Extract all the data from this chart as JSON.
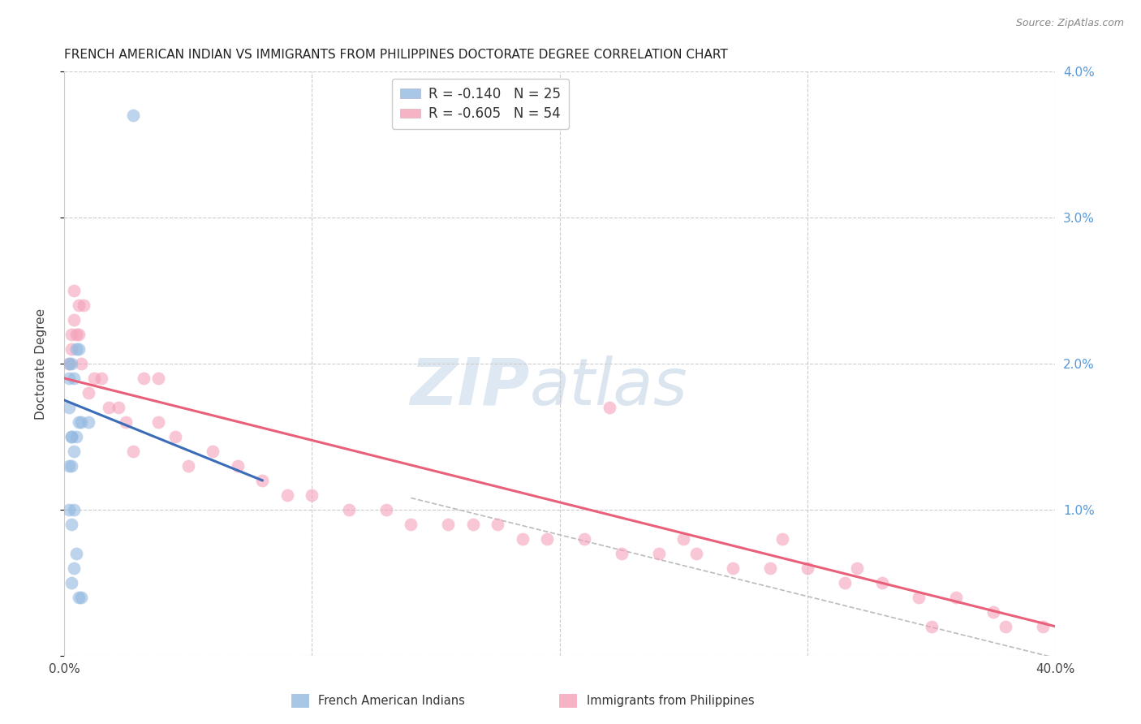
{
  "title": "FRENCH AMERICAN INDIAN VS IMMIGRANTS FROM PHILIPPINES DOCTORATE DEGREE CORRELATION CHART",
  "source": "Source: ZipAtlas.com",
  "ylabel": "Doctorate Degree",
  "xlim": [
    0,
    0.4
  ],
  "ylim": [
    0,
    0.04
  ],
  "yticks": [
    0.0,
    0.01,
    0.02,
    0.03,
    0.04
  ],
  "ytick_labels": [
    "",
    "1.0%",
    "2.0%",
    "3.0%",
    "4.0%"
  ],
  "legend_blue_r": "-0.140",
  "legend_blue_n": "25",
  "legend_pink_r": "-0.605",
  "legend_pink_n": "54",
  "legend_blue_label": "French American Indians",
  "legend_pink_label": "Immigrants from Philippines",
  "blue_color": "#92B8E0",
  "pink_color": "#F4A0B8",
  "blue_line_color": "#3B6CB7",
  "pink_line_color": "#E8607A",
  "dashed_line_color": "#BBBBBB",
  "blue_scatter_x": [
    0.028,
    0.005,
    0.003,
    0.004,
    0.006,
    0.002,
    0.002,
    0.003,
    0.006,
    0.01,
    0.002,
    0.003,
    0.003,
    0.005,
    0.007,
    0.004,
    0.002,
    0.002,
    0.004,
    0.003,
    0.005,
    0.004,
    0.003,
    0.006,
    0.007
  ],
  "blue_scatter_y": [
    0.037,
    0.021,
    0.02,
    0.019,
    0.021,
    0.02,
    0.019,
    0.015,
    0.016,
    0.016,
    0.017,
    0.015,
    0.013,
    0.015,
    0.016,
    0.014,
    0.013,
    0.01,
    0.01,
    0.009,
    0.007,
    0.006,
    0.005,
    0.004,
    0.004
  ],
  "pink_scatter_x": [
    0.003,
    0.004,
    0.002,
    0.006,
    0.003,
    0.004,
    0.005,
    0.007,
    0.01,
    0.012,
    0.015,
    0.018,
    0.022,
    0.025,
    0.028,
    0.008,
    0.006,
    0.032,
    0.038,
    0.038,
    0.045,
    0.05,
    0.06,
    0.07,
    0.08,
    0.09,
    0.1,
    0.115,
    0.13,
    0.14,
    0.155,
    0.165,
    0.175,
    0.185,
    0.195,
    0.21,
    0.225,
    0.24,
    0.255,
    0.27,
    0.285,
    0.3,
    0.315,
    0.33,
    0.345,
    0.36,
    0.375,
    0.22,
    0.25,
    0.29,
    0.32,
    0.35,
    0.38,
    0.395
  ],
  "pink_scatter_y": [
    0.022,
    0.025,
    0.02,
    0.024,
    0.021,
    0.023,
    0.022,
    0.02,
    0.018,
    0.019,
    0.019,
    0.017,
    0.017,
    0.016,
    0.014,
    0.024,
    0.022,
    0.019,
    0.019,
    0.016,
    0.015,
    0.013,
    0.014,
    0.013,
    0.012,
    0.011,
    0.011,
    0.01,
    0.01,
    0.009,
    0.009,
    0.009,
    0.009,
    0.008,
    0.008,
    0.008,
    0.007,
    0.007,
    0.007,
    0.006,
    0.006,
    0.006,
    0.005,
    0.005,
    0.004,
    0.004,
    0.003,
    0.017,
    0.008,
    0.008,
    0.006,
    0.002,
    0.002,
    0.002
  ],
  "blue_line_x": [
    0.0,
    0.08
  ],
  "blue_line_y": [
    0.0175,
    0.012
  ],
  "pink_line_x": [
    0.0,
    0.4
  ],
  "pink_line_y": [
    0.019,
    0.002
  ],
  "dashed_line_x": [
    0.14,
    0.42
  ],
  "dashed_line_y": [
    0.0108,
    -0.001
  ],
  "title_fontsize": 11,
  "axis_label_fontsize": 11,
  "tick_fontsize": 11,
  "legend_fontsize": 12
}
